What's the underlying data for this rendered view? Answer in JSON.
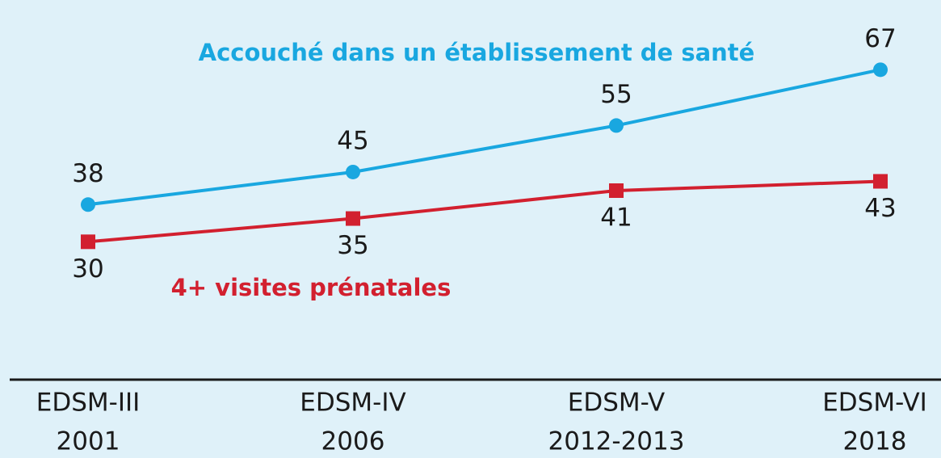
{
  "chart_data": {
    "type": "line",
    "categories": [
      [
        "EDSM-III",
        "2001"
      ],
      [
        "EDSM-IV",
        "2006"
      ],
      [
        "EDSM-V",
        "2012-2013"
      ],
      [
        "EDSM-VI",
        "2018"
      ]
    ],
    "series": [
      {
        "name": "Accouché dans un établissement de santé",
        "color": "#19a7e0",
        "marker": "circle",
        "values": [
          38,
          45,
          55,
          67
        ]
      },
      {
        "name": "4+ visites prénatales",
        "color": "#d2202f",
        "marker": "square",
        "values": [
          30,
          35,
          41,
          43
        ]
      }
    ],
    "ylim": [
      0,
      82
    ]
  }
}
